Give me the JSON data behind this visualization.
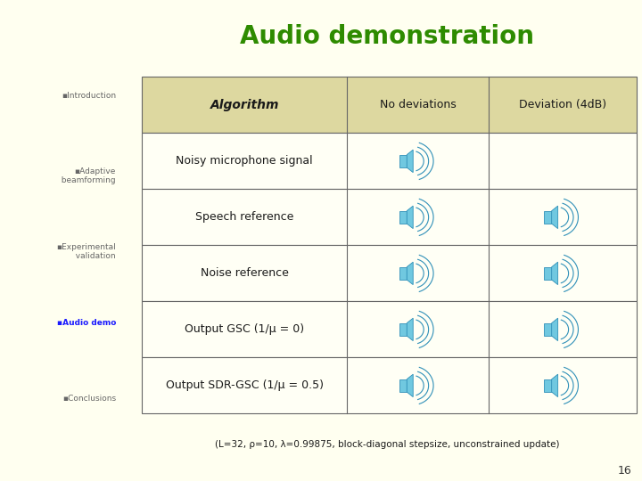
{
  "title": "Audio demonstration",
  "title_color": "#2e8b00",
  "bg_color": "#fffff0",
  "sidebar_line_color": "#4db800",
  "sidebar_items": [
    {
      "text": "▪Introduction",
      "bold": false,
      "color": "#666666"
    },
    {
      "text": "▪Adaptive\n  beamforming",
      "bold": false,
      "color": "#666666"
    },
    {
      "text": "▪Experimental\n  validation",
      "bold": false,
      "color": "#666666"
    },
    {
      "text": "▪Audio demo",
      "bold": true,
      "color": "#1a1aff"
    },
    {
      "text": "▪Conclusions",
      "bold": false,
      "color": "#666666"
    }
  ],
  "table_header": [
    "Algorithm",
    "No deviations",
    "Deviation (4dB)"
  ],
  "table_rows": [
    "Noisy microphone signal",
    "Speech reference",
    "Noise reference",
    "Output GSC (1/μ = 0)",
    "Output SDR-GSC (1/μ = 0.5)"
  ],
  "speaker_col2": [
    true,
    true,
    true,
    true,
    true
  ],
  "speaker_col3": [
    false,
    true,
    true,
    true,
    true
  ],
  "footer_text": "(L=32, ρ=10, λ=0.99875, block-diagonal stepsize, unconstrained update)",
  "page_num": "16",
  "header_bg": "#ddd8a0",
  "row_bg": "#fffff5"
}
